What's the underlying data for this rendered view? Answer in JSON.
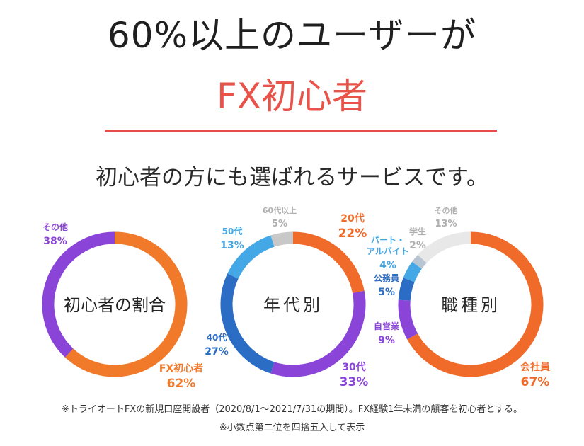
{
  "header": {
    "title": "60%以上のユーザーが",
    "highlight": "FX初心者",
    "subtitle": "初心者の方にも選ばれるサービスです。"
  },
  "footnotes": {
    "note1": "※トライオートFXの新規口座開設者（2020/8/1〜2021/7/31の期間）。FX経験1年未満の顧客を初心者とする。",
    "note2": "※小数点第二位を四捨五入して表示"
  },
  "chart_data": [
    {
      "type": "pie",
      "title": "初心者の割合",
      "series": [
        {
          "name": "FX初心者",
          "value": 62,
          "label": "62%",
          "color": "#f07a2a"
        },
        {
          "name": "その他",
          "value": 38,
          "label": "38%",
          "color": "#8a45d8"
        }
      ]
    },
    {
      "type": "pie",
      "title": "年代別",
      "series": [
        {
          "name": "20代",
          "value": 22,
          "label": "22%",
          "color": "#f06a2a"
        },
        {
          "name": "30代",
          "value": 33,
          "label": "33%",
          "color": "#8a45d8"
        },
        {
          "name": "40代",
          "value": 27,
          "label": "27%",
          "color": "#2b6cc4"
        },
        {
          "name": "50代",
          "value": 13,
          "label": "13%",
          "color": "#45a8e6"
        },
        {
          "name": "60代以上",
          "value": 5,
          "label": "5%",
          "color": "#c8c8c8"
        }
      ]
    },
    {
      "type": "pie",
      "title": "職種別",
      "series": [
        {
          "name": "会社員",
          "value": 67,
          "label": "67%",
          "color": "#f06a2a"
        },
        {
          "name": "自営業",
          "value": 9,
          "label": "9%",
          "color": "#8a45d8"
        },
        {
          "name": "公務員",
          "value": 5,
          "label": "5%",
          "color": "#2b6cc4"
        },
        {
          "name": "パート・アルバイト",
          "value": 4,
          "label": "4%",
          "color": "#45a8e6"
        },
        {
          "name": "学生",
          "value": 2,
          "label": "2%",
          "color": "#b8c6d4"
        },
        {
          "name": "その他",
          "value": 13,
          "label": "13%",
          "color": "#e8e8e8"
        }
      ]
    }
  ]
}
